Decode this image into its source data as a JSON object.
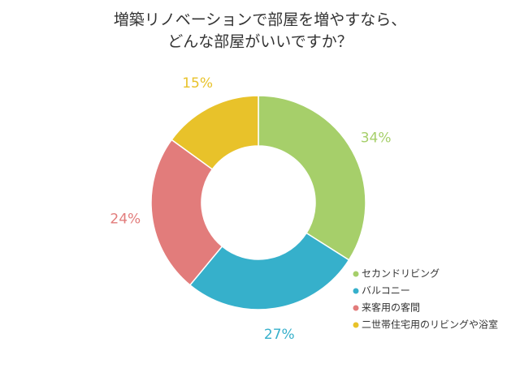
{
  "chart_data": {
    "type": "donut",
    "title": [
      "増築リノベーションで部屋を増やすなら、",
      "どんな部屋がいいですか？"
    ],
    "categories": [
      "セカンドリビング",
      "バルコニー",
      "来客用の客間",
      "二世帯住宅用のリビングや浴室"
    ],
    "values": [
      34,
      27,
      24,
      15
    ],
    "value_labels": [
      "34%",
      "27%",
      "24%",
      "15%"
    ],
    "colors": [
      "#a6cf6a",
      "#36b0cb",
      "#e27c7b",
      "#e8c22a"
    ],
    "legend": "bottom-right"
  }
}
